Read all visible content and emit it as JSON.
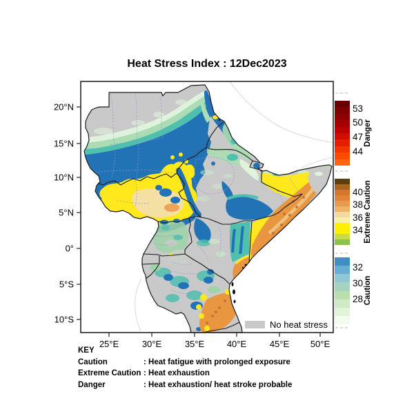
{
  "title": "Heat Stress Index : 12Dec2023",
  "axes": {
    "x": [
      "25°E",
      "30°E",
      "35°E",
      "40°E",
      "45°E",
      "50°E"
    ],
    "y": [
      "20°N",
      "15°N",
      "10°N",
      "5°N",
      "0°",
      "5°S",
      "10°S"
    ]
  },
  "legend": {
    "no_heat_stress": {
      "label": "No heat stress",
      "color": "#c9c9c9"
    },
    "bars": [
      {
        "label": "Danger",
        "ticks": [
          "53",
          "50",
          "47",
          "44"
        ],
        "colors": [
          "#670000",
          "#7c0000",
          "#900000",
          "#a50000",
          "#bb0400",
          "#d00d00",
          "#e41f00",
          "#f23500",
          "#fb4c00",
          "#ff6512"
        ]
      },
      {
        "label": "Extreme Caution",
        "ticks": [
          "40",
          "38",
          "36",
          "34"
        ],
        "colors": [
          "#5d3c0e",
          "#a8631e",
          "#d4762c",
          "#e08438",
          "#e89a4e",
          "#eeb269",
          "#f3d9a0",
          "#f8f0a8",
          "#fff200",
          "#ffee00",
          "#c8dc46",
          "#8cc152"
        ]
      },
      {
        "label": "Caution",
        "ticks": [
          "32",
          "30",
          "28"
        ],
        "colors": [
          "#3f8fc4",
          "#66aed3",
          "#8fc8d4",
          "#a4d4bf",
          "#b9dfad",
          "#cfeac4",
          "#e3f3d9",
          "#f3faee"
        ]
      }
    ]
  },
  "key": {
    "heading": "KEY",
    "entries": [
      {
        "term": "Caution",
        "desc": ": Heat fatigue with prolonged exposure"
      },
      {
        "term": "Extreme Caution",
        "desc": ": Heat exhaustion"
      },
      {
        "term": "Danger",
        "desc": ": Heat exhaustion/ heat stroke probable"
      }
    ]
  },
  "map": {
    "palette": {
      "no_heat_stress": "#c9c9c9",
      "caution_palest": "#dff2dc",
      "caution_light": "#abdcb4",
      "caution_teal": "#4fbfae",
      "caution_blue": "#2273b6",
      "extreme_caution_yellow": "#ffe81c",
      "extreme_caution_tan": "#f4dfa5",
      "extreme_caution_orange": "#e8963f",
      "extreme_caution_dark": "#c96a2d",
      "admin_boundary": "#9393d8",
      "country_boundary": "#1a1a1a"
    }
  },
  "chart_data": {
    "type": "heatmap",
    "title": "Heat Stress Index : 12Dec2023",
    "region": "Greater Horn of Africa",
    "x_tick_values_deg_east": [
      25,
      30,
      35,
      40,
      45,
      50
    ],
    "y_tick_values_deg_north": [
      20,
      15,
      10,
      5,
      0,
      -5,
      -10
    ],
    "colorbar_sections": [
      {
        "name": "Danger",
        "tick_values": [
          53,
          50,
          47,
          44
        ]
      },
      {
        "name": "Extreme Caution",
        "tick_values": [
          40,
          38,
          36,
          34
        ]
      },
      {
        "name": "Caution",
        "tick_values": [
          32,
          30,
          28
        ]
      },
      {
        "name": "No heat stress"
      }
    ]
  }
}
